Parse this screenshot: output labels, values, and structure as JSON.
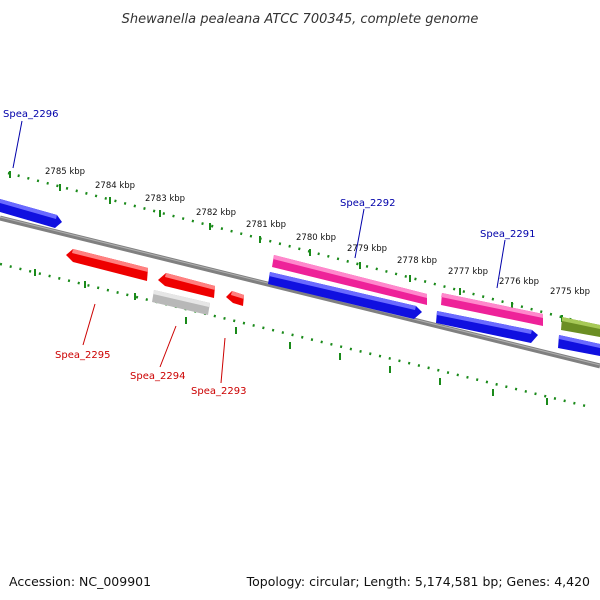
{
  "title": "Shewanella pealeana ATCC 700345, complete genome",
  "ticks": [
    "2785 kbp",
    "2784 kbp",
    "2783 kbp",
    "2782 kbp",
    "2781 kbp",
    "2780 kbp",
    "2779 kbp",
    "2778 kbp",
    "2777 kbp",
    "2776 kbp",
    "2775 kbp"
  ],
  "gene_labels": {
    "spea_2296": "Spea_2296",
    "spea_2295": "Spea_2295",
    "spea_2294": "Spea_2294",
    "spea_2293": "Spea_2293",
    "spea_2292": "Spea_2292",
    "spea_2291": "Spea_2291"
  },
  "footer": {
    "accession": "Accession: NC_009901",
    "summary": "Topology: circular; Length: 5,174,581 bp; Genes: 4,420"
  },
  "colors": {
    "backbone": "#808080",
    "ruler": "#1a8a1a",
    "forward_gene": "#1010e0",
    "reverse_gene": "#ee0000",
    "pink_gene": "#ee2299",
    "grey_gene": "#b8b8b8",
    "olive_gene": "#6b8e23",
    "label_blue": "#0000aa",
    "label_red": "#cc0000"
  }
}
